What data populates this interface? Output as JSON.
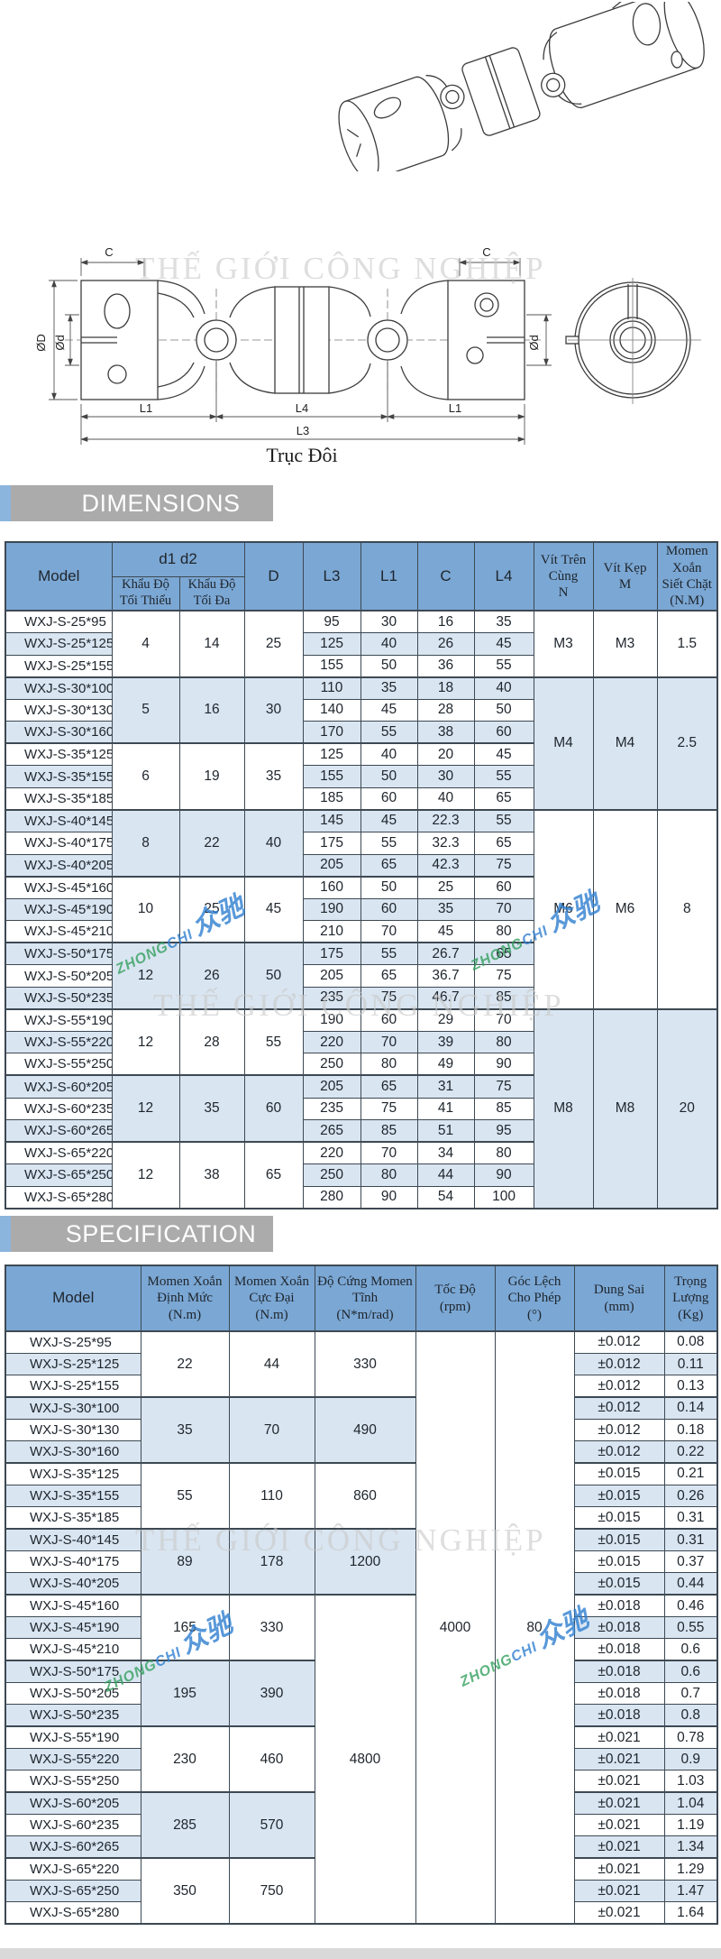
{
  "colors": {
    "header_blue": "#7ba7d4",
    "row_blue": "#d9e5f1",
    "border": "#3d4953",
    "bar_gray": "#ababab",
    "accent_blue": "#8cb5dd",
    "footer_gray": "#d9d9d9",
    "text_dark": "#1e252c",
    "watermark_gray": "#c9c9c9",
    "brand_blue": "#2f7fd0",
    "brand_green": "#35a05f"
  },
  "sections": {
    "dimensions": "DIMENSIONS",
    "specification": "SPECIFICATION"
  },
  "watermark": {
    "text": "THẾ GIỚI CÔNG NGHIỆP",
    "brand_en": "ZHONG",
    "brand_en2": "CHI",
    "brand_cn": "众驰"
  },
  "drawing": {
    "caption": "Trục Đôi",
    "labels": {
      "c_left": "C",
      "c_right": "C",
      "od": "ØD",
      "od_small_left": "Ød",
      "od_small_right": "Ød",
      "l1_left": "L1",
      "l4": "L4",
      "l1_right": "L1",
      "l3": "L3"
    }
  },
  "dimensions_table": {
    "headers": {
      "model": "Model",
      "d1d2": "d1 d2",
      "min": "Khẩu Độ\nTối Thiểu",
      "max": "Khẩu Độ\nTối Đa",
      "D": "D",
      "L3": "L3",
      "L1": "L1",
      "C": "C",
      "L4": "L4",
      "N": "Vít Trên\nCùng\nN",
      "M": "Vít Kẹp\nM",
      "torque": "Momen Xoắn\nSiết Chặt\n(N.M)"
    },
    "groups": [
      {
        "d1_min": "4",
        "d1_max": "14",
        "D": "25",
        "screws": {
          "span": 3,
          "N": "M3",
          "M": "M3",
          "torque": "1.5"
        },
        "rows": [
          {
            "model": "WXJ-S-25*95",
            "L3": "95",
            "L1": "30",
            "C": "16",
            "L4": "35"
          },
          {
            "model": "WXJ-S-25*125",
            "L3": "125",
            "L1": "40",
            "C": "26",
            "L4": "45"
          },
          {
            "model": "WXJ-S-25*155",
            "L3": "155",
            "L1": "50",
            "C": "36",
            "L4": "55"
          }
        ]
      },
      {
        "d1_min": "5",
        "d1_max": "16",
        "D": "30",
        "screws": {
          "span": 6,
          "N": "M4",
          "M": "M4",
          "torque": "2.5"
        },
        "rows": [
          {
            "model": "WXJ-S-30*100",
            "L3": "110",
            "L1": "35",
            "C": "18",
            "L4": "40"
          },
          {
            "model": "WXJ-S-30*130",
            "L3": "140",
            "L1": "45",
            "C": "28",
            "L4": "50"
          },
          {
            "model": "WXJ-S-30*160",
            "L3": "170",
            "L1": "55",
            "C": "38",
            "L4": "60"
          }
        ]
      },
      {
        "d1_min": "6",
        "d1_max": "19",
        "D": "35",
        "rows": [
          {
            "model": "WXJ-S-35*125",
            "L3": "125",
            "L1": "40",
            "C": "20",
            "L4": "45"
          },
          {
            "model": "WXJ-S-35*155",
            "L3": "155",
            "L1": "50",
            "C": "30",
            "L4": "55"
          },
          {
            "model": "WXJ-S-35*185",
            "L3": "185",
            "L1": "60",
            "C": "40",
            "L4": "65"
          }
        ]
      },
      {
        "d1_min": "8",
        "d1_max": "22",
        "D": "40",
        "screws": {
          "span": 9,
          "N": "M6",
          "M": "M6",
          "torque": "8"
        },
        "rows": [
          {
            "model": "WXJ-S-40*145",
            "L3": "145",
            "L1": "45",
            "C": "22.3",
            "L4": "55"
          },
          {
            "model": "WXJ-S-40*175",
            "L3": "175",
            "L1": "55",
            "C": "32.3",
            "L4": "65"
          },
          {
            "model": "WXJ-S-40*205",
            "L3": "205",
            "L1": "65",
            "C": "42.3",
            "L4": "75"
          }
        ]
      },
      {
        "d1_min": "10",
        "d1_max": "25",
        "D": "45",
        "rows": [
          {
            "model": "WXJ-S-45*160",
            "L3": "160",
            "L1": "50",
            "C": "25",
            "L4": "60"
          },
          {
            "model": "WXJ-S-45*190",
            "L3": "190",
            "L1": "60",
            "C": "35",
            "L4": "70"
          },
          {
            "model": "WXJ-S-45*210",
            "L3": "210",
            "L1": "70",
            "C": "45",
            "L4": "80"
          }
        ]
      },
      {
        "d1_min": "12",
        "d1_max": "26",
        "D": "50",
        "rows": [
          {
            "model": "WXJ-S-50*175",
            "L3": "175",
            "L1": "55",
            "C": "26.7",
            "L4": "65"
          },
          {
            "model": "WXJ-S-50*205",
            "L3": "205",
            "L1": "65",
            "C": "36.7",
            "L4": "75"
          },
          {
            "model": "WXJ-S-50*235",
            "L3": "235",
            "L1": "75",
            "C": "46.7",
            "L4": "85"
          }
        ]
      },
      {
        "d1_min": "12",
        "d1_max": "28",
        "D": "55",
        "screws": {
          "span": 9,
          "N": "M8",
          "M": "M8",
          "torque": "20"
        },
        "rows": [
          {
            "model": "WXJ-S-55*190",
            "L3": "190",
            "L1": "60",
            "C": "29",
            "L4": "70"
          },
          {
            "model": "WXJ-S-55*220",
            "L3": "220",
            "L1": "70",
            "C": "39",
            "L4": "80"
          },
          {
            "model": "WXJ-S-55*250",
            "L3": "250",
            "L1": "80",
            "C": "49",
            "L4": "90"
          }
        ]
      },
      {
        "d1_min": "12",
        "d1_max": "35",
        "D": "60",
        "rows": [
          {
            "model": "WXJ-S-60*205",
            "L3": "205",
            "L1": "65",
            "C": "31",
            "L4": "75"
          },
          {
            "model": "WXJ-S-60*235",
            "L3": "235",
            "L1": "75",
            "C": "41",
            "L4": "85"
          },
          {
            "model": "WXJ-S-60*265",
            "L3": "265",
            "L1": "85",
            "C": "51",
            "L4": "95"
          }
        ]
      },
      {
        "d1_min": "12",
        "d1_max": "38",
        "D": "65",
        "rows": [
          {
            "model": "WXJ-S-65*220",
            "L3": "220",
            "L1": "70",
            "C": "34",
            "L4": "80"
          },
          {
            "model": "WXJ-S-65*250",
            "L3": "250",
            "L1": "80",
            "C": "44",
            "L4": "90"
          },
          {
            "model": "WXJ-S-65*280",
            "L3": "280",
            "L1": "90",
            "C": "54",
            "L4": "100"
          }
        ]
      }
    ]
  },
  "specification_table": {
    "headers": {
      "model": "Model",
      "rated": "Momen Xoắn\nĐịnh Mức\n(N.m)",
      "max": "Momen Xoắn\nCực Đại\n(N.m)",
      "stiffness": "Độ Cứng Momen\nTĩnh\n(N*m/rad)",
      "speed": "Tốc Độ\n(rpm)",
      "angle": "Góc Lệch\nCho Phép\n(°)",
      "tolerance": "Dung Sai\n(mm)",
      "weight": "Trọng\nLượng\n(Kg)"
    },
    "speed": {
      "value": "4000",
      "span": 27
    },
    "angle": {
      "value": "80",
      "span": 27
    },
    "groups": [
      {
        "rated": "22",
        "max": "44",
        "stiffness": {
          "value": "330",
          "span": 3
        },
        "rows": [
          {
            "model": "WXJ-S-25*95",
            "tolerance": "±0.012",
            "weight": "0.08"
          },
          {
            "model": "WXJ-S-25*125",
            "tolerance": "±0.012",
            "weight": "0.11"
          },
          {
            "model": "WXJ-S-25*155",
            "tolerance": "±0.012",
            "weight": "0.13"
          }
        ]
      },
      {
        "rated": "35",
        "max": "70",
        "stiffness": {
          "value": "490",
          "span": 3
        },
        "rows": [
          {
            "model": "WXJ-S-30*100",
            "tolerance": "±0.012",
            "weight": "0.14"
          },
          {
            "model": "WXJ-S-30*130",
            "tolerance": "±0.012",
            "weight": "0.18"
          },
          {
            "model": "WXJ-S-30*160",
            "tolerance": "±0.012",
            "weight": "0.22"
          }
        ]
      },
      {
        "rated": "55",
        "max": "110",
        "stiffness": {
          "value": "860",
          "span": 3
        },
        "rows": [
          {
            "model": "WXJ-S-35*125",
            "tolerance": "±0.015",
            "weight": "0.21"
          },
          {
            "model": "WXJ-S-35*155",
            "tolerance": "±0.015",
            "weight": "0.26"
          },
          {
            "model": "WXJ-S-35*185",
            "tolerance": "±0.015",
            "weight": "0.31"
          }
        ]
      },
      {
        "rated": "89",
        "max": "178",
        "stiffness": {
          "value": "1200",
          "span": 3
        },
        "rows": [
          {
            "model": "WXJ-S-40*145",
            "tolerance": "±0.015",
            "weight": "0.31"
          },
          {
            "model": "WXJ-S-40*175",
            "tolerance": "±0.015",
            "weight": "0.37"
          },
          {
            "model": "WXJ-S-40*205",
            "tolerance": "±0.015",
            "weight": "0.44"
          }
        ]
      },
      {
        "rated": "165",
        "max": "330",
        "stiffness": {
          "value": "4800",
          "span": 15
        },
        "rows": [
          {
            "model": "WXJ-S-45*160",
            "tolerance": "±0.018",
            "weight": "0.46"
          },
          {
            "model": "WXJ-S-45*190",
            "tolerance": "±0.018",
            "weight": "0.55"
          },
          {
            "model": "WXJ-S-45*210",
            "tolerance": "±0.018",
            "weight": "0.6"
          }
        ]
      },
      {
        "rated": "195",
        "max": "390",
        "rows": [
          {
            "model": "WXJ-S-50*175",
            "tolerance": "±0.018",
            "weight": "0.6"
          },
          {
            "model": "WXJ-S-50*205",
            "tolerance": "±0.018",
            "weight": "0.7"
          },
          {
            "model": "WXJ-S-50*235",
            "tolerance": "±0.018",
            "weight": "0.8"
          }
        ]
      },
      {
        "rated": "230",
        "max": "460",
        "rows": [
          {
            "model": "WXJ-S-55*190",
            "tolerance": "±0.021",
            "weight": "0.78"
          },
          {
            "model": "WXJ-S-55*220",
            "tolerance": "±0.021",
            "weight": "0.9"
          },
          {
            "model": "WXJ-S-55*250",
            "tolerance": "±0.021",
            "weight": "1.03"
          }
        ]
      },
      {
        "rated": "285",
        "max": "570",
        "rows": [
          {
            "model": "WXJ-S-60*205",
            "tolerance": "±0.021",
            "weight": "1.04"
          },
          {
            "model": "WXJ-S-60*235",
            "tolerance": "±0.021",
            "weight": "1.19"
          },
          {
            "model": "WXJ-S-60*265",
            "tolerance": "±0.021",
            "weight": "1.34"
          }
        ]
      },
      {
        "rated": "350",
        "max": "750",
        "rows": [
          {
            "model": "WXJ-S-65*220",
            "tolerance": "±0.021",
            "weight": "1.29"
          },
          {
            "model": "WXJ-S-65*250",
            "tolerance": "±0.021",
            "weight": "1.47"
          },
          {
            "model": "WXJ-S-65*280",
            "tolerance": "±0.021",
            "weight": "1.64"
          }
        ]
      }
    ]
  }
}
